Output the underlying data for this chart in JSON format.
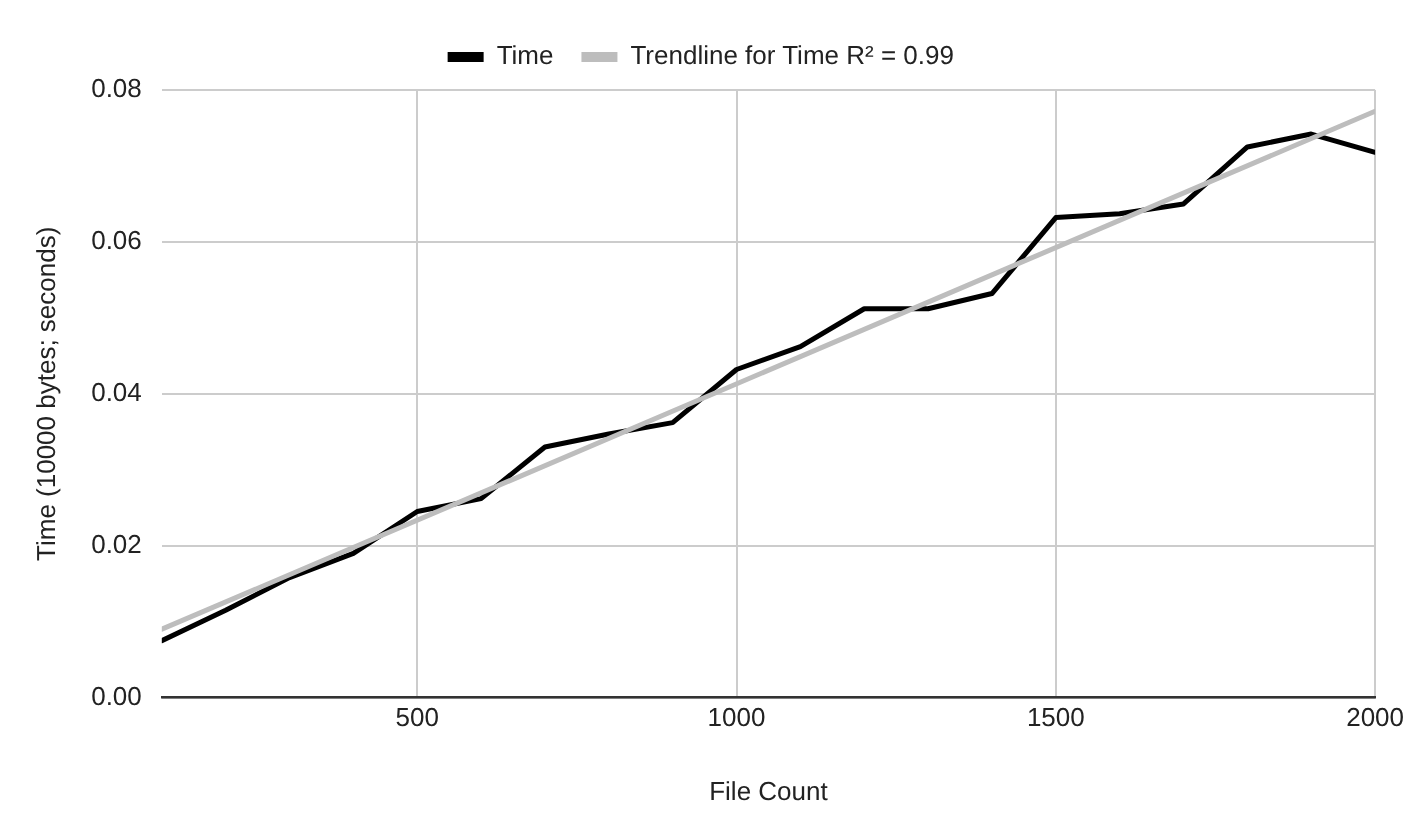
{
  "chart_data": {
    "type": "line",
    "xlabel": "File Count",
    "ylabel": "Time (10000 bytes; seconds)",
    "x": [
      100,
      200,
      300,
      400,
      500,
      600,
      700,
      800,
      900,
      1000,
      1100,
      1200,
      1300,
      1400,
      1500,
      1600,
      1700,
      1800,
      1900,
      2000
    ],
    "series": [
      {
        "name": "Time",
        "color": "#000000",
        "values": [
          0.0075,
          0.0115,
          0.0158,
          0.019,
          0.0245,
          0.0262,
          0.033,
          0.0347,
          0.0362,
          0.0432,
          0.0462,
          0.0512,
          0.0512,
          0.0532,
          0.0632,
          0.0637,
          0.065,
          0.0725,
          0.0742,
          0.0718
        ]
      },
      {
        "name": "Trendline for Time R² = 0.99",
        "color": "#bdbdbd",
        "x": [
          100,
          2000
        ],
        "values": [
          0.009,
          0.0772
        ]
      }
    ],
    "xlim": [
      100,
      2000
    ],
    "xticks": [
      500,
      1000,
      1500,
      2000
    ],
    "ylim": [
      0,
      0.08
    ],
    "yticks": [
      {
        "value": 0,
        "label": "0.00"
      },
      {
        "value": 0.02,
        "label": "0.02"
      },
      {
        "value": 0.04,
        "label": "0.04"
      },
      {
        "value": 0.06,
        "label": "0.06"
      },
      {
        "value": 0.08,
        "label": "0.08"
      }
    ],
    "grid": true,
    "legend": "top",
    "marker": "none",
    "line_style": "solid"
  }
}
